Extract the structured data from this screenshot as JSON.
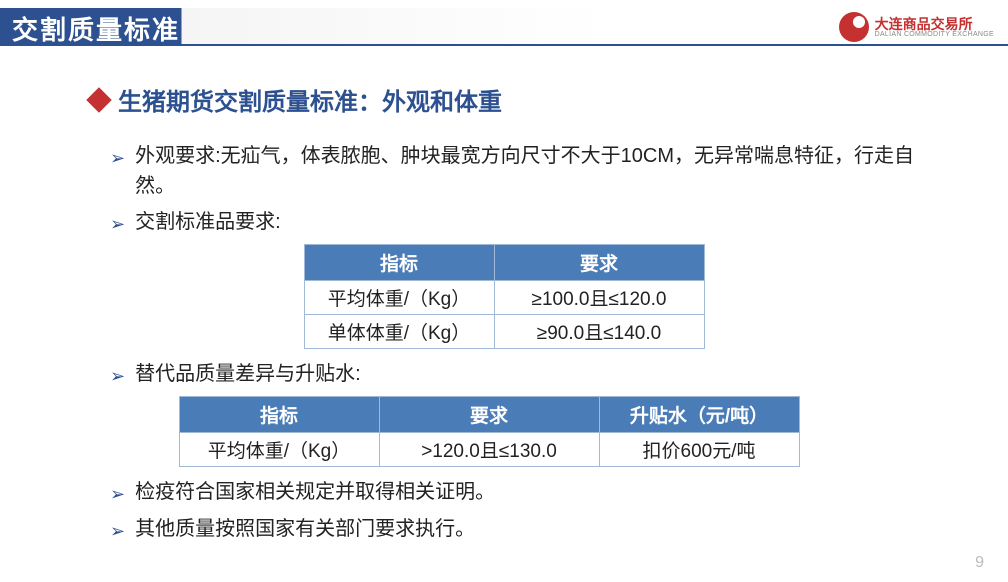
{
  "header": {
    "title": "交割质量标准",
    "logo_text": "大连商品交易所",
    "logo_sub": "DALIAN COMMODITY EXCHANGE"
  },
  "main_heading": "生猪期货交割质量标准：外观和体重",
  "bullets": {
    "b1": "外观要求:无疝气，体表脓胞、肿块最宽方向尺寸不大于10CM，无异常喘息特征，行走自然。",
    "b2": "交割标准品要求:",
    "b3": "替代品质量差异与升贴水:",
    "b4": "检疫符合国家相关规定并取得相关证明。",
    "b5": "其他质量按照国家有关部门要求执行。"
  },
  "table1": {
    "headers": {
      "c1": "指标",
      "c2": "要求"
    },
    "rows": [
      {
        "c1": "平均体重/（Kg）",
        "c2": "≥100.0且≤120.0"
      },
      {
        "c1": "单体体重/（Kg）",
        "c2": "≥90.0且≤140.0"
      }
    ]
  },
  "table2": {
    "headers": {
      "c1": "指标",
      "c2": "要求",
      "c3": "升贴水（元/吨）"
    },
    "rows": [
      {
        "c1": "平均体重/（Kg）",
        "c2": ">120.0且≤130.0",
        "c3": "扣价600元/吨"
      }
    ]
  },
  "page_number": "9",
  "colors": {
    "header_blue": "#2d5090",
    "table_header_bg": "#4a7cb8",
    "accent_red": "#c53030",
    "text": "#222222",
    "border": "#9fb9d6"
  }
}
